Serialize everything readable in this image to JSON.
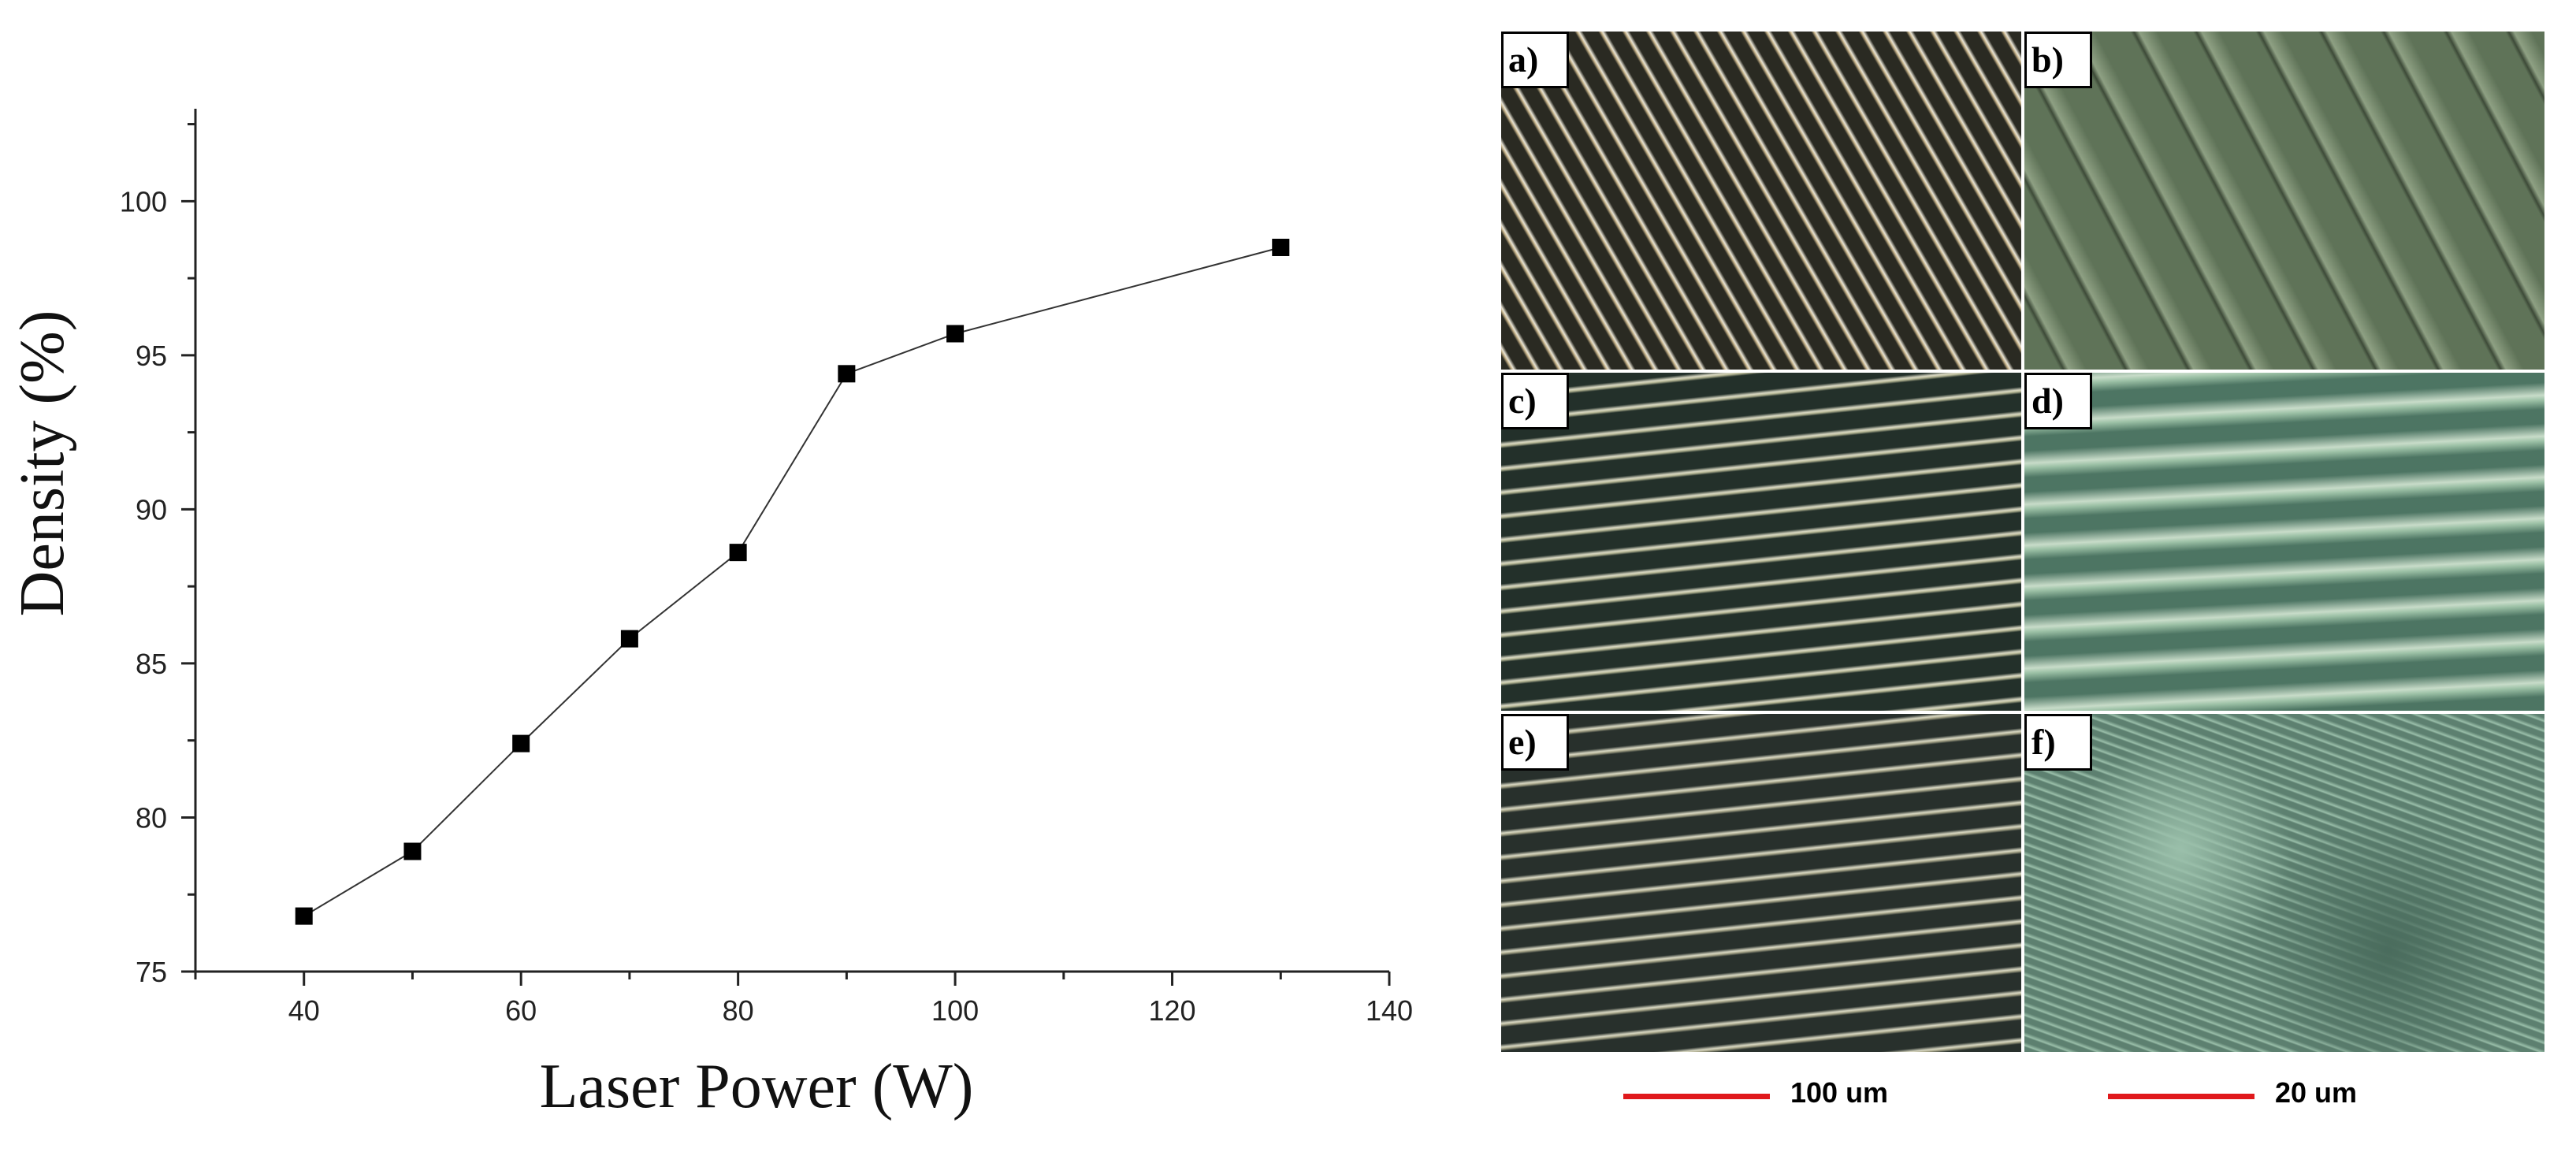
{
  "chart_data": {
    "type": "line",
    "title": "",
    "xlabel": "Laser Power (W)",
    "ylabel": "Density (%)",
    "xlim": [
      30,
      140
    ],
    "ylim": [
      75,
      103
    ],
    "xticks": [
      "40",
      "60",
      "80",
      "100",
      "120",
      "140"
    ],
    "yticks": [
      "75",
      "80",
      "85",
      "90",
      "95",
      "100"
    ],
    "marker": "square",
    "grid": false,
    "series": [
      {
        "x": [
          40,
          50,
          60,
          70,
          80,
          90,
          100,
          130
        ],
        "values": [
          76.8,
          78.9,
          82.4,
          85.8,
          88.6,
          94.4,
          95.7,
          98.5
        ]
      }
    ]
  },
  "micrographs": {
    "panels": [
      {
        "label": "a)",
        "tone": "#2a2a22",
        "accent": "#c8b48a",
        "pattern": "diagonal"
      },
      {
        "label": "b)",
        "tone": "#5f7358",
        "accent": "#8ea083",
        "pattern": "diagonal-soft"
      },
      {
        "label": "c)",
        "tone": "#23302a",
        "accent": "#b7b896",
        "pattern": "horizontal"
      },
      {
        "label": "d)",
        "tone": "#4d7563",
        "accent": "#9cc1a6",
        "pattern": "horizontal-soft"
      },
      {
        "label": "e)",
        "tone": "#28302c",
        "accent": "#a9a78b",
        "pattern": "horizontal"
      },
      {
        "label": "f)",
        "tone": "#5d8070",
        "accent": "#9abfaa",
        "pattern": "speckle"
      }
    ],
    "scalebars": [
      {
        "label": "100 um",
        "color": "#e0191c"
      },
      {
        "label": "20 um",
        "color": "#e0191c"
      }
    ]
  }
}
